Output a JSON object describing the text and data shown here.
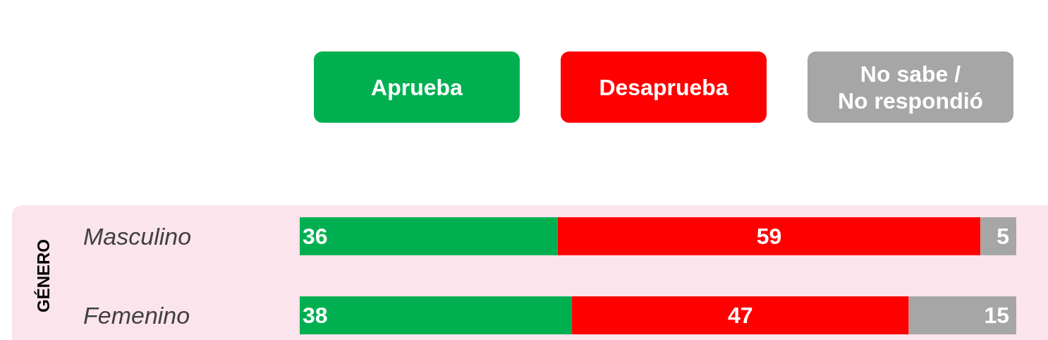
{
  "chart_data": {
    "type": "bar",
    "orientation": "horizontal",
    "stacked": true,
    "ylabel": "GÉNERO",
    "categories": [
      "Masculino",
      "Femenino"
    ],
    "series": [
      {
        "name": "Aprueba",
        "color": "#00b050",
        "values": [
          36,
          38
        ]
      },
      {
        "name": "Desaprueba",
        "color": "#ff0000",
        "values": [
          59,
          47
        ]
      },
      {
        "name": "No sabe / No respondió",
        "color": "#a6a6a6",
        "values": [
          5,
          15
        ]
      }
    ],
    "data_labels": true,
    "legend": "top"
  }
}
